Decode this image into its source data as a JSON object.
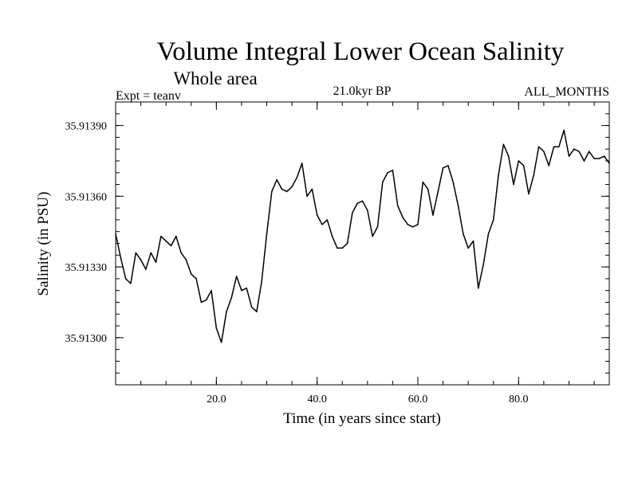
{
  "chart_data": {
    "type": "line",
    "title": "Volume Integral Lower Ocean Salinity",
    "subtitle": "Whole area",
    "experiment_label": "Expt = teanv",
    "period_label": "21.0kyr BP",
    "months_label": "ALL_MONTHS",
    "xlabel": "Time (in years since start)",
    "ylabel": "Salinity (in PSU)",
    "xlim": [
      0,
      98
    ],
    "ylim": [
      35.9128,
      35.914
    ],
    "x_ticks": [
      {
        "value": 20,
        "label": "20.0"
      },
      {
        "value": 40,
        "label": "40.0"
      },
      {
        "value": 60,
        "label": "60.0"
      },
      {
        "value": 80,
        "label": "80.0"
      }
    ],
    "y_ticks": [
      {
        "value": 35.913,
        "label": "35.91300"
      },
      {
        "value": 35.9133,
        "label": "35.91330"
      },
      {
        "value": 35.9136,
        "label": "35.91360"
      },
      {
        "value": 35.9139,
        "label": "35.91390"
      }
    ],
    "x_minor_step": 5,
    "y_minor_step": 5e-05,
    "grid": false,
    "series": [
      {
        "name": "Lower Ocean Salinity",
        "color": "#000000",
        "x": [
          0,
          1,
          2,
          3,
          4,
          5,
          6,
          7,
          8,
          9,
          10,
          11,
          12,
          13,
          14,
          15,
          16,
          17,
          18,
          19,
          20,
          21,
          22,
          23,
          24,
          25,
          26,
          27,
          28,
          29,
          30,
          31,
          32,
          33,
          34,
          35,
          36,
          37,
          38,
          39,
          40,
          41,
          42,
          43,
          44,
          45,
          46,
          47,
          48,
          49,
          50,
          51,
          52,
          53,
          54,
          55,
          56,
          57,
          58,
          59,
          60,
          61,
          62,
          63,
          64,
          65,
          66,
          67,
          68,
          69,
          70,
          71,
          72,
          73,
          74,
          75,
          76,
          77,
          78,
          79,
          80,
          81,
          82,
          83,
          84,
          85,
          86,
          87,
          88,
          89,
          90,
          91,
          92,
          93,
          94,
          95,
          96,
          97,
          98
        ],
        "values": [
          35.91344,
          35.91334,
          35.91325,
          35.91323,
          35.91336,
          35.91333,
          35.91329,
          35.91336,
          35.91332,
          35.91343,
          35.91341,
          35.91339,
          35.91343,
          35.91336,
          35.91333,
          35.91327,
          35.91325,
          35.91315,
          35.91316,
          35.9132,
          35.91304,
          35.91298,
          35.91311,
          35.91317,
          35.91326,
          35.9132,
          35.91321,
          35.91313,
          35.91311,
          35.91324,
          35.91344,
          35.91362,
          35.91367,
          35.91363,
          35.91362,
          35.91364,
          35.91368,
          35.91374,
          35.9136,
          35.91363,
          35.91352,
          35.91348,
          35.9135,
          35.91343,
          35.91338,
          35.91338,
          35.9134,
          35.91353,
          35.91357,
          35.91358,
          35.91354,
          35.91343,
          35.91347,
          35.91366,
          35.9137,
          35.91371,
          35.91356,
          35.91351,
          35.91348,
          35.91347,
          35.91348,
          35.91366,
          35.91363,
          35.91352,
          35.91362,
          35.91372,
          35.91373,
          35.91366,
          35.91356,
          35.91344,
          35.91338,
          35.91341,
          35.91321,
          35.91331,
          35.91344,
          35.9135,
          35.91369,
          35.91382,
          35.91377,
          35.91365,
          35.91375,
          35.91373,
          35.91361,
          35.91369,
          35.91381,
          35.91379,
          35.91373,
          35.91381,
          35.91381,
          35.91388,
          35.91377,
          35.9138,
          35.91379,
          35.91375,
          35.91379,
          35.91376,
          35.91376,
          35.91377,
          35.91374
        ]
      }
    ]
  },
  "x_start": 0
}
